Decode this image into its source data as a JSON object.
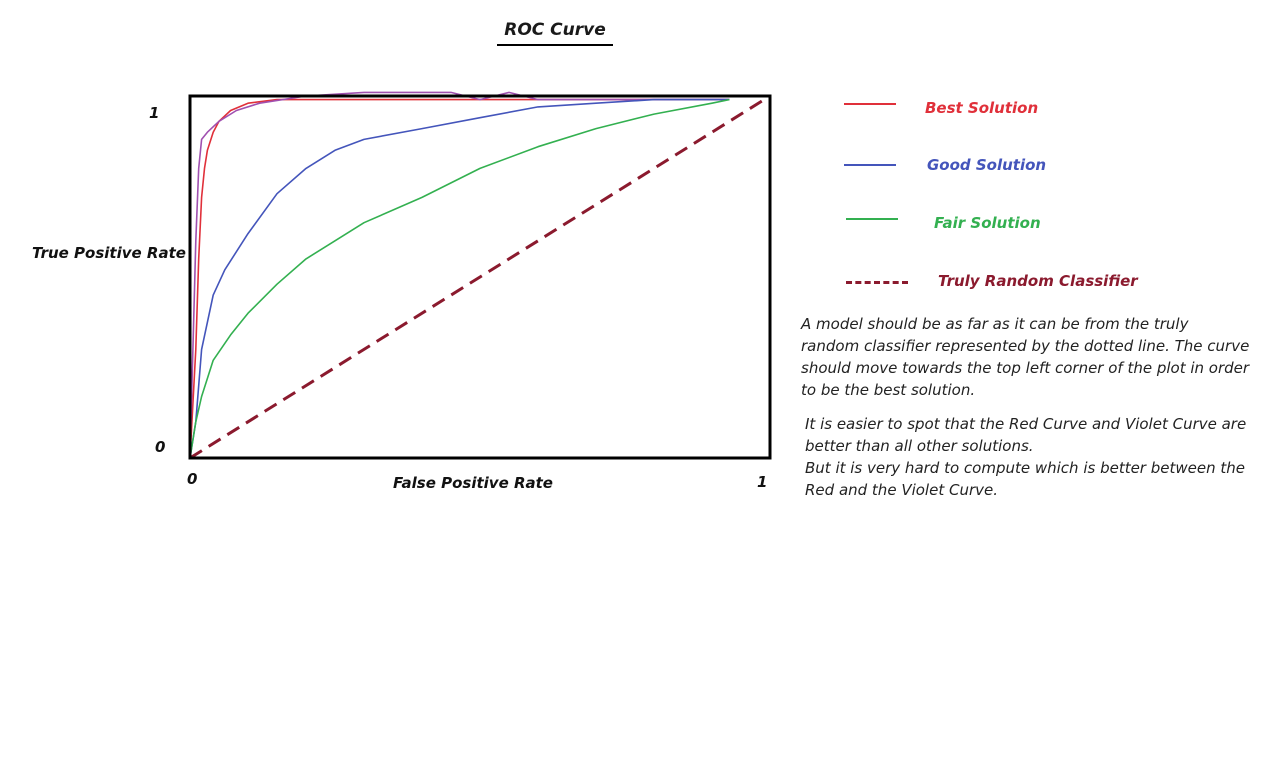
{
  "chart_data": {
    "type": "line",
    "title": "ROC Curve",
    "xlabel": "False Positive Rate",
    "ylabel": "True Positive Rate",
    "xlim": [
      0,
      1
    ],
    "ylim": [
      0,
      1
    ],
    "x_ticks": [
      "0",
      "1"
    ],
    "y_ticks": [
      "0",
      "1"
    ],
    "grid": false,
    "legend_position": "right",
    "series": [
      {
        "name": "Best Solution",
        "color": "#e0303a",
        "style": "solid",
        "x": [
          0,
          0.005,
          0.01,
          0.015,
          0.02,
          0.025,
          0.03,
          0.04,
          0.05,
          0.07,
          0.1,
          0.15,
          0.2,
          0.3,
          0.5,
          0.7,
          0.85,
          0.93
        ],
        "y": [
          0,
          0.15,
          0.3,
          0.55,
          0.72,
          0.8,
          0.85,
          0.9,
          0.93,
          0.96,
          0.98,
          0.99,
          0.99,
          0.99,
          0.99,
          0.99,
          0.99,
          0.99
        ]
      },
      {
        "name": "",
        "color": "#a050b0",
        "style": "solid",
        "x": [
          0,
          0.005,
          0.01,
          0.015,
          0.02,
          0.03,
          0.05,
          0.08,
          0.12,
          0.2,
          0.3,
          0.35,
          0.4,
          0.45,
          0.5,
          0.55,
          0.6,
          0.7,
          0.8,
          0.93
        ],
        "y": [
          0,
          0.3,
          0.6,
          0.8,
          0.88,
          0.9,
          0.93,
          0.96,
          0.98,
          1.0,
          1.01,
          1.01,
          1.01,
          1.01,
          0.99,
          1.01,
          0.99,
          0.99,
          0.99,
          0.99
        ]
      },
      {
        "name": "Good Solution",
        "color": "#4455bb",
        "style": "solid",
        "x": [
          0,
          0.01,
          0.02,
          0.04,
          0.06,
          0.1,
          0.15,
          0.2,
          0.25,
          0.3,
          0.4,
          0.5,
          0.6,
          0.7,
          0.8,
          0.93
        ],
        "y": [
          0,
          0.1,
          0.3,
          0.45,
          0.52,
          0.62,
          0.73,
          0.8,
          0.85,
          0.88,
          0.91,
          0.94,
          0.97,
          0.98,
          0.99,
          0.99
        ]
      },
      {
        "name": "Fair Solution",
        "color": "#33b050",
        "style": "solid",
        "x": [
          0,
          0.01,
          0.02,
          0.04,
          0.07,
          0.1,
          0.15,
          0.2,
          0.25,
          0.3,
          0.4,
          0.5,
          0.6,
          0.7,
          0.8,
          0.9,
          0.93
        ],
        "y": [
          0,
          0.1,
          0.17,
          0.27,
          0.34,
          0.4,
          0.48,
          0.55,
          0.6,
          0.65,
          0.72,
          0.8,
          0.86,
          0.91,
          0.95,
          0.98,
          0.99
        ]
      },
      {
        "name": "Truly Random Classifier",
        "color": "#8b1a2e",
        "style": "dashed",
        "x": [
          0,
          1
        ],
        "y": [
          0,
          1
        ]
      }
    ],
    "annotations": [
      "A model should be as far as it can be from the truly random classifier represented by the dotted line. The curve should move towards the top left corner of the plot in order to be the best solution.",
      "It is easier to spot that the Red Curve and Violet Curve are better than all other solutions.",
      "But it is very hard to compute which is better between the Red and the Violet Curve."
    ]
  },
  "legend": [
    {
      "label": "Best Solution",
      "color": "#e0303a",
      "style": "solid"
    },
    {
      "label": "Good Solution",
      "color": "#4455bb",
      "style": "solid"
    },
    {
      "label": "Fair Solution",
      "color": "#33b050",
      "style": "solid"
    },
    {
      "label": "Truly Random Classifier",
      "color": "#8b1a2e",
      "style": "dashed"
    }
  ]
}
